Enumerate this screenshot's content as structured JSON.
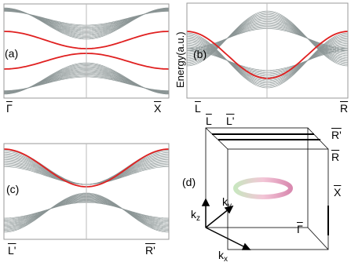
{
  "panels": {
    "a": {
      "label": "(a)",
      "left": "Γ",
      "right": "X"
    },
    "b": {
      "label": "(b)",
      "ylabel": "Energy(a.u.)",
      "left": "L",
      "right": "R"
    },
    "c": {
      "label": "(c)",
      "left": "L'",
      "right": "R'"
    },
    "d": {
      "label": "(d)",
      "points": [
        "L",
        "L'",
        "R'",
        "R",
        "X",
        "Γ"
      ],
      "axes": [
        {
          "base": "k",
          "sub": "z"
        },
        {
          "base": "k",
          "sub": "y"
        },
        {
          "base": "k",
          "sub": "x"
        }
      ]
    }
  }
}
